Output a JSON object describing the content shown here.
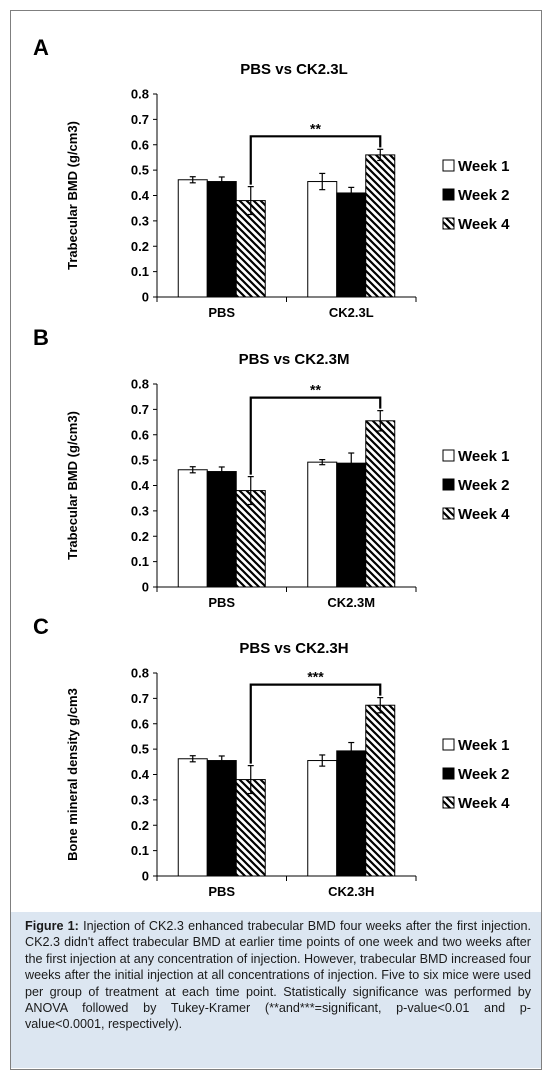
{
  "caption": {
    "label": "Figure 1:",
    "text": "Injection of CK2.3 enhanced trabecular BMD four weeks after the first injection. CK2.3 didn't affect trabecular BMD at earlier time points of one week and two weeks after the first injection at any concentration of injection. However, trabecular BMD increased four weeks after the initial injection at all concentrations of injection. Five to six mice were used per group of treatment at each time point. Statistically significance was performed by ANOVA followed by Tukey-Kramer (**and***=significant, p-value<0.01 and p-value<0.0001, respectively)."
  },
  "chart_data": [
    {
      "type": "bar",
      "panel_letter": "A",
      "title": "PBS vs CK2.3L",
      "ylabel": "Trabecular BMD (g/cm3)",
      "ylim": [
        0,
        0.8
      ],
      "yticks": [
        "0",
        "0.1",
        "0.2",
        "0.3",
        "0.4",
        "0.5",
        "0.6",
        "0.7",
        "0.8"
      ],
      "categories": [
        "PBS",
        "CK2.3L"
      ],
      "series": [
        {
          "name": "Week 1",
          "values": [
            0.462,
            0.455
          ],
          "errors": [
            0.012,
            0.032
          ]
        },
        {
          "name": "Week 2",
          "values": [
            0.455,
            0.41
          ],
          "errors": [
            0.018,
            0.022
          ]
        },
        {
          "name": "Week 4",
          "values": [
            0.38,
            0.56
          ],
          "errors": [
            0.055,
            0.022
          ]
        }
      ],
      "significance": "**",
      "legend_position": "right"
    },
    {
      "type": "bar",
      "panel_letter": "B",
      "title": "PBS vs CK2.3M",
      "ylabel": "Trabecular BMD (g/cm3)",
      "ylim": [
        0,
        0.8
      ],
      "yticks": [
        "0",
        "0.1",
        "0.2",
        "0.3",
        "0.4",
        "0.5",
        "0.6",
        "0.7",
        "0.8"
      ],
      "categories": [
        "PBS",
        "CK2.3M"
      ],
      "series": [
        {
          "name": "Week 1",
          "values": [
            0.462,
            0.492
          ],
          "errors": [
            0.012,
            0.01
          ]
        },
        {
          "name": "Week 2",
          "values": [
            0.455,
            0.488
          ],
          "errors": [
            0.018,
            0.04
          ]
        },
        {
          "name": "Week 4",
          "values": [
            0.38,
            0.655
          ],
          "errors": [
            0.055,
            0.04
          ]
        }
      ],
      "significance": "**",
      "legend_position": "right"
    },
    {
      "type": "bar",
      "panel_letter": "C",
      "title": "PBS vs CK2.3H",
      "ylabel": "Bone mineral density g/cm3",
      "ylim": [
        0,
        0.8
      ],
      "yticks": [
        "0",
        "0.1",
        "0.2",
        "0.3",
        "0.4",
        "0.5",
        "0.6",
        "0.7",
        "0.8"
      ],
      "categories": [
        "PBS",
        "CK2.3H"
      ],
      "series": [
        {
          "name": "Week 1",
          "values": [
            0.462,
            0.455
          ],
          "errors": [
            0.012,
            0.022
          ]
        },
        {
          "name": "Week 2",
          "values": [
            0.455,
            0.493
          ],
          "errors": [
            0.018,
            0.033
          ]
        },
        {
          "name": "Week 4",
          "values": [
            0.38,
            0.673
          ],
          "errors": [
            0.055,
            0.03
          ]
        }
      ],
      "significance": "***",
      "legend_position": "right"
    }
  ]
}
